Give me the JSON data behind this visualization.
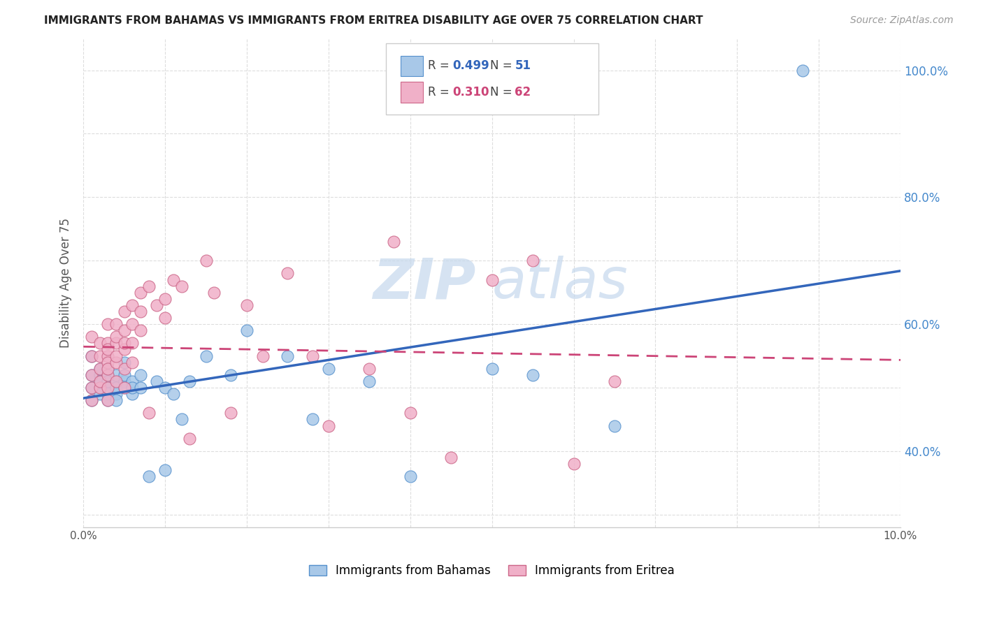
{
  "title": "IMMIGRANTS FROM BAHAMAS VS IMMIGRANTS FROM ERITREA DISABILITY AGE OVER 75 CORRELATION CHART",
  "source": "Source: ZipAtlas.com",
  "ylabel": "Disability Age Over 75",
  "xmin": 0.0,
  "xmax": 0.1,
  "ymin": 0.28,
  "ymax": 1.05,
  "series1_label": "Immigrants from Bahamas",
  "series1_R": "0.499",
  "series1_N": "51",
  "series1_color": "#a8c8e8",
  "series1_edge_color": "#5590cc",
  "series1_line_color": "#3366bb",
  "series2_label": "Immigrants from Eritrea",
  "series2_R": "0.310",
  "series2_N": "62",
  "series2_color": "#f0b0c8",
  "series2_edge_color": "#cc6688",
  "series2_line_color": "#cc4477",
  "watermark": "ZIPAtlas",
  "background_color": "#ffffff",
  "grid_color": "#dddddd",
  "right_axis_color": "#4488cc",
  "ytick_vals": [
    0.4,
    0.6,
    0.8,
    1.0
  ],
  "ytick_labels": [
    "40.0%",
    "60.0%",
    "80.0%",
    "100.0%"
  ],
  "bahamas_x": [
    0.001,
    0.001,
    0.001,
    0.001,
    0.002,
    0.002,
    0.002,
    0.002,
    0.002,
    0.003,
    0.003,
    0.003,
    0.003,
    0.003,
    0.003,
    0.003,
    0.003,
    0.004,
    0.004,
    0.004,
    0.004,
    0.004,
    0.004,
    0.005,
    0.005,
    0.005,
    0.005,
    0.006,
    0.006,
    0.006,
    0.007,
    0.007,
    0.008,
    0.009,
    0.01,
    0.01,
    0.011,
    0.012,
    0.013,
    0.015,
    0.018,
    0.02,
    0.025,
    0.028,
    0.03,
    0.035,
    0.04,
    0.05,
    0.055,
    0.065,
    0.088
  ],
  "bahamas_y": [
    0.5,
    0.52,
    0.48,
    0.55,
    0.5,
    0.52,
    0.49,
    0.51,
    0.53,
    0.5,
    0.51,
    0.52,
    0.49,
    0.5,
    0.51,
    0.48,
    0.53,
    0.5,
    0.51,
    0.52,
    0.49,
    0.5,
    0.48,
    0.51,
    0.52,
    0.5,
    0.54,
    0.49,
    0.51,
    0.5,
    0.5,
    0.52,
    0.36,
    0.51,
    0.5,
    0.37,
    0.49,
    0.45,
    0.51,
    0.55,
    0.52,
    0.59,
    0.55,
    0.45,
    0.53,
    0.51,
    0.36,
    0.53,
    0.52,
    0.44,
    1.0
  ],
  "eritrea_x": [
    0.001,
    0.001,
    0.001,
    0.001,
    0.001,
    0.002,
    0.002,
    0.002,
    0.002,
    0.002,
    0.003,
    0.003,
    0.003,
    0.003,
    0.003,
    0.003,
    0.003,
    0.003,
    0.003,
    0.004,
    0.004,
    0.004,
    0.004,
    0.004,
    0.004,
    0.005,
    0.005,
    0.005,
    0.005,
    0.005,
    0.005,
    0.006,
    0.006,
    0.006,
    0.006,
    0.007,
    0.007,
    0.007,
    0.008,
    0.008,
    0.009,
    0.01,
    0.01,
    0.011,
    0.012,
    0.013,
    0.015,
    0.016,
    0.018,
    0.02,
    0.022,
    0.025,
    0.028,
    0.03,
    0.035,
    0.04,
    0.045,
    0.05,
    0.055,
    0.06,
    0.065,
    0.038
  ],
  "eritrea_y": [
    0.52,
    0.55,
    0.5,
    0.58,
    0.48,
    0.53,
    0.55,
    0.5,
    0.57,
    0.51,
    0.6,
    0.55,
    0.52,
    0.57,
    0.54,
    0.5,
    0.56,
    0.53,
    0.48,
    0.6,
    0.57,
    0.54,
    0.51,
    0.58,
    0.55,
    0.62,
    0.59,
    0.56,
    0.53,
    0.57,
    0.5,
    0.63,
    0.6,
    0.57,
    0.54,
    0.65,
    0.62,
    0.59,
    0.66,
    0.46,
    0.63,
    0.64,
    0.61,
    0.67,
    0.66,
    0.42,
    0.7,
    0.65,
    0.46,
    0.63,
    0.55,
    0.68,
    0.55,
    0.44,
    0.53,
    0.46,
    0.39,
    0.67,
    0.7,
    0.38,
    0.51,
    0.73
  ]
}
